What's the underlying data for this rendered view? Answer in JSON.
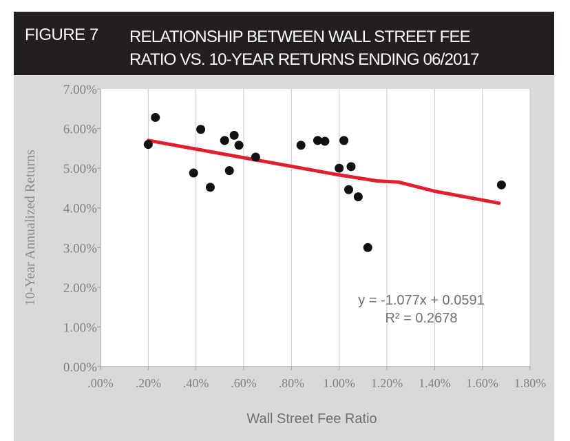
{
  "header": {
    "figure_label": "FIGURE 7",
    "title_line1": "RELATIONSHIP BETWEEN WALL STREET FEE",
    "title_line2": "RATIO VS. 10-YEAR RETURNS ENDING 06/2017",
    "background": "#231f20",
    "text_color": "#ffffff"
  },
  "chart_data": {
    "type": "scatter",
    "xlabel": "Wall Street Fee Ratio",
    "ylabel": "10-Year Annualized Returns",
    "xlim": [
      0,
      1.8
    ],
    "ylim": [
      0,
      0.07
    ],
    "x_ticks": [
      0,
      0.2,
      0.4,
      0.6,
      0.8,
      1.0,
      1.2,
      1.4,
      1.6,
      1.8
    ],
    "x_tick_labels": [
      ".00%",
      ".20%",
      ".40%",
      ".60%",
      ".80%",
      "1.00%",
      "1.20%",
      "1.40%",
      "1.60%",
      "1.80%"
    ],
    "y_ticks": [
      0,
      0.01,
      0.02,
      0.03,
      0.04,
      0.05,
      0.06,
      0.07
    ],
    "y_tick_labels": [
      "0.00%",
      "1.00%",
      "2.00%",
      "3.00%",
      "4.00%",
      "5.00%",
      "6.00%",
      "7.00%"
    ],
    "grid": "vertical",
    "points": [
      {
        "x": 0.2,
        "y": 0.056
      },
      {
        "x": 0.23,
        "y": 0.0628
      },
      {
        "x": 0.39,
        "y": 0.0488
      },
      {
        "x": 0.42,
        "y": 0.0598
      },
      {
        "x": 0.46,
        "y": 0.0452
      },
      {
        "x": 0.52,
        "y": 0.057
      },
      {
        "x": 0.54,
        "y": 0.0494
      },
      {
        "x": 0.56,
        "y": 0.0583
      },
      {
        "x": 0.58,
        "y": 0.0558
      },
      {
        "x": 0.65,
        "y": 0.0528
      },
      {
        "x": 0.84,
        "y": 0.0558
      },
      {
        "x": 0.91,
        "y": 0.057
      },
      {
        "x": 0.94,
        "y": 0.0568
      },
      {
        "x": 1.0,
        "y": 0.05
      },
      {
        "x": 1.02,
        "y": 0.057
      },
      {
        "x": 1.04,
        "y": 0.0446
      },
      {
        "x": 1.05,
        "y": 0.0504
      },
      {
        "x": 1.08,
        "y": 0.0428
      },
      {
        "x": 1.12,
        "y": 0.03
      },
      {
        "x": 1.68,
        "y": 0.0458
      }
    ],
    "trendline": {
      "x": [
        0.2,
        1.0,
        1.16,
        1.25,
        1.4,
        1.67
      ],
      "y": [
        0.057,
        0.0483,
        0.0468,
        0.0465,
        0.0442,
        0.0412
      ],
      "color": "#e0202e"
    },
    "equation": "y = -1.077x + 0.0591",
    "r_squared": "R² = 0.2678",
    "point_color": "#111111",
    "panel_color": "#d9d9d9",
    "plot_color": "#ffffff"
  }
}
